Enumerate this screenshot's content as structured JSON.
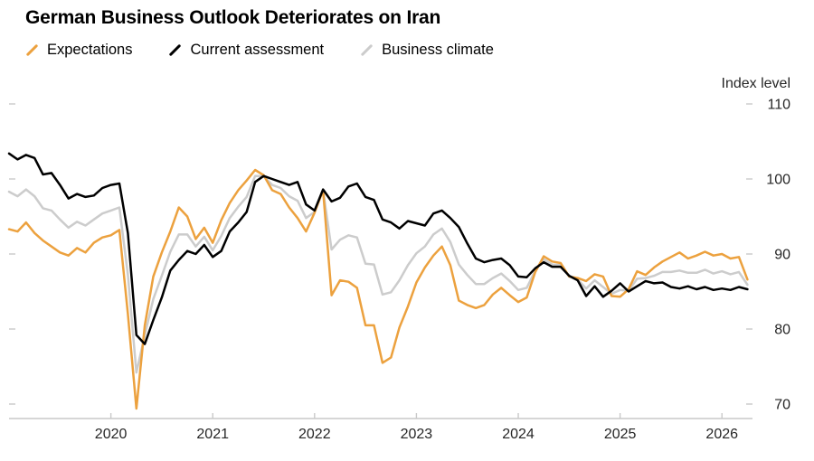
{
  "header": {
    "title": "German Business Outlook Deteriorates on Iran"
  },
  "y_axis_title": "Index level",
  "colors": {
    "expectations": "#ECA13E",
    "current_assessment": "#000000",
    "business_climate": "#CCCCCC",
    "axis": "#C9C9C9",
    "tick_label": "#262626",
    "title_text": "#000000"
  },
  "chart_data": {
    "type": "line",
    "title": "German Business Outlook Deteriorates on Iran",
    "xlabel": "",
    "ylabel": "Index level",
    "x_start_year": 2019.0,
    "x_step_months": 1,
    "xlim": [
      2019.0,
      2026.3
    ],
    "ylim": [
      70,
      110
    ],
    "x_ticks": [
      "2020",
      "2021",
      "2022",
      "2023",
      "2024",
      "2025",
      "2026"
    ],
    "y_ticks": [
      70,
      80,
      90,
      100,
      110
    ],
    "grid": false,
    "legend_position": "top-left",
    "series": [
      {
        "name": "Expectations",
        "color": "#ECA13E",
        "values": [
          93.3,
          93.0,
          94.2,
          92.8,
          91.8,
          91.0,
          90.2,
          89.8,
          90.8,
          90.2,
          91.5,
          92.2,
          92.5,
          93.2,
          82.0,
          69.4,
          80.5,
          87.0,
          90.2,
          93.0,
          96.2,
          95.0,
          92.0,
          93.5,
          91.5,
          94.5,
          96.8,
          98.5,
          99.8,
          101.2,
          100.5,
          98.5,
          98.0,
          96.2,
          94.8,
          93.0,
          95.5,
          98.5,
          84.5,
          86.5,
          86.3,
          85.5,
          80.5,
          80.5,
          75.5,
          76.2,
          80.2,
          83.0,
          86.2,
          88.2,
          89.8,
          91.0,
          88.5,
          83.8,
          83.2,
          82.8,
          83.2,
          84.6,
          85.5,
          84.5,
          83.6,
          84.2,
          87.6,
          89.7,
          89.0,
          88.8,
          87.0,
          86.8,
          86.4,
          87.3,
          87.0,
          84.4,
          84.3,
          85.3,
          87.7,
          87.2,
          88.2,
          89.0,
          89.6,
          90.2,
          89.4,
          89.8,
          90.3,
          89.8,
          90.0,
          89.4,
          89.6,
          86.6
        ]
      },
      {
        "name": "Current assessment",
        "color": "#000000",
        "values": [
          103.4,
          102.6,
          103.2,
          102.8,
          100.6,
          100.8,
          99.2,
          97.4,
          98.0,
          97.6,
          97.8,
          98.8,
          99.2,
          99.4,
          92.8,
          79.2,
          78.0,
          81.2,
          84.2,
          87.8,
          89.2,
          90.4,
          90.0,
          91.2,
          89.6,
          90.4,
          93.0,
          94.2,
          95.6,
          99.6,
          100.4,
          100.0,
          99.6,
          99.2,
          99.6,
          96.6,
          95.8,
          98.6,
          97.0,
          97.5,
          99.0,
          99.4,
          97.6,
          97.2,
          94.6,
          94.2,
          93.4,
          94.4,
          94.1,
          93.8,
          95.4,
          95.8,
          94.8,
          93.6,
          91.4,
          89.4,
          88.9,
          89.2,
          89.4,
          88.5,
          87.0,
          86.9,
          88.1,
          88.9,
          88.3,
          88.3,
          87.1,
          86.5,
          84.4,
          85.7,
          84.3,
          85.1,
          86.1,
          85.0,
          85.7,
          86.4,
          86.1,
          86.2,
          85.6,
          85.4,
          85.7,
          85.3,
          85.6,
          85.2,
          85.4,
          85.2,
          85.6,
          85.3
        ]
      },
      {
        "name": "Business climate",
        "color": "#CCCCCC",
        "values": [
          98.3,
          97.7,
          98.6,
          97.7,
          96.1,
          95.8,
          94.6,
          93.5,
          94.3,
          93.8,
          94.6,
          95.4,
          95.8,
          96.2,
          87.2,
          74.2,
          79.2,
          84.0,
          87.1,
          90.3,
          92.6,
          92.6,
          91.0,
          92.3,
          90.5,
          92.4,
          94.8,
          96.3,
          97.6,
          100.4,
          100.4,
          99.2,
          98.8,
          97.7,
          97.1,
          94.8,
          95.6,
          98.5,
          90.6,
          91.9,
          92.5,
          92.2,
          88.7,
          88.6,
          84.6,
          84.9,
          86.5,
          88.5,
          90.1,
          91.0,
          92.6,
          93.4,
          91.6,
          88.6,
          87.2,
          86.0,
          86.0,
          86.8,
          87.4,
          86.4,
          85.2,
          85.5,
          87.8,
          89.3,
          88.6,
          88.5,
          87.0,
          86.6,
          85.4,
          86.5,
          85.6,
          84.7,
          85.2,
          85.1,
          86.7,
          86.8,
          87.1,
          87.6,
          87.6,
          87.8,
          87.5,
          87.5,
          87.9,
          87.4,
          87.7,
          87.3,
          87.6,
          85.9
        ]
      }
    ]
  }
}
